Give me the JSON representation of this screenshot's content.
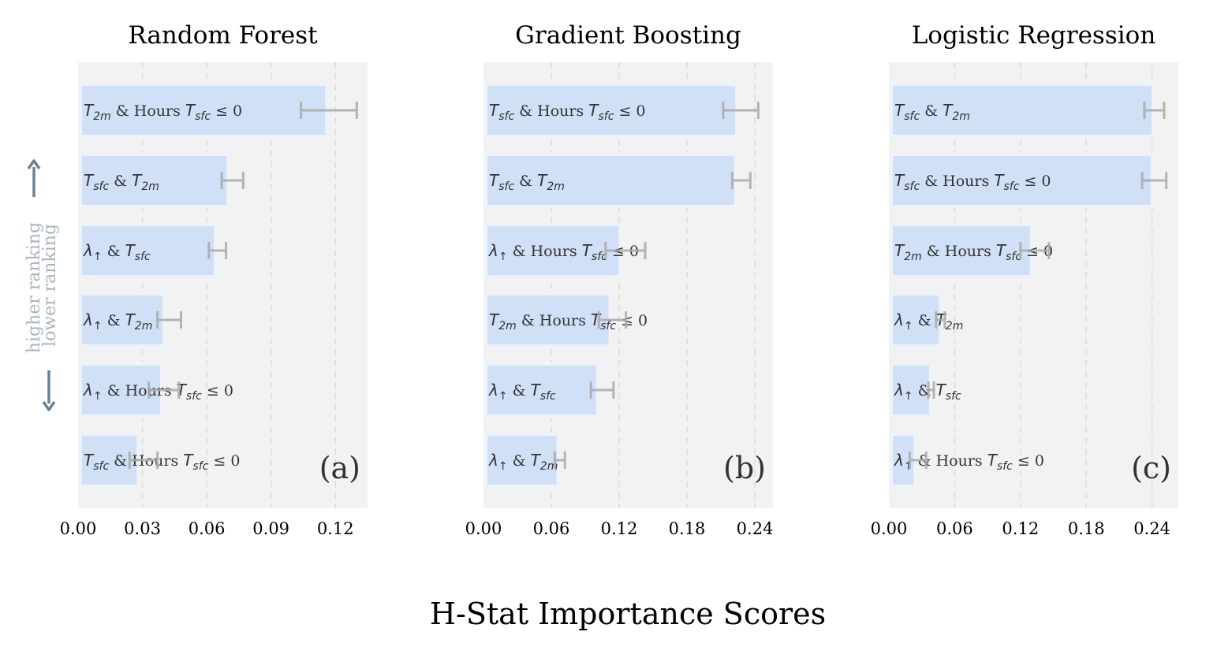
{
  "figure": {
    "xlabel": "H-Stat Importance Scores",
    "ranking_up": "higher ranking",
    "ranking_down": "lower ranking",
    "colors": {
      "bar": "#d0e0f7",
      "bar_edge": "#eef3fb",
      "background": "#f2f2f2",
      "error": "#aaaaaa",
      "arrow": "#6b8194"
    }
  },
  "chart_data": [
    {
      "type": "bar",
      "orientation": "horizontal",
      "title": "Random Forest",
      "panel_tag": "(a)",
      "xlim": [
        0,
        0.135
      ],
      "xticks": [
        "0.00",
        "0.03",
        "0.06",
        "0.09",
        "0.12"
      ],
      "grid": "vertical dashed",
      "bars": [
        {
          "label": [
            "T",
            "2m",
            " & Hours ",
            "T",
            "sfc",
            " ≤ 0"
          ],
          "value": 0.116,
          "err_low": 0.104,
          "err_high": 0.13
        },
        {
          "label": [
            "T",
            "sfc",
            " & ",
            "T",
            "2m"
          ],
          "value": 0.07,
          "err_low": 0.067,
          "err_high": 0.077
        },
        {
          "label": [
            "λ",
            "↑",
            "  & ",
            "T",
            "sfc"
          ],
          "value": 0.064,
          "err_low": 0.061,
          "err_high": 0.069
        },
        {
          "label": [
            "λ",
            "↑",
            "  & ",
            "T",
            "2m"
          ],
          "value": 0.04,
          "err_low": 0.037,
          "err_high": 0.048
        },
        {
          "label": [
            "λ",
            "↑",
            "  & Hours ",
            "T",
            "sfc",
            " ≤ 0"
          ],
          "value": 0.039,
          "err_low": 0.033,
          "err_high": 0.047
        },
        {
          "label": [
            "T",
            "sfc",
            " & Hours ",
            "T",
            "sfc",
            " ≤ 0"
          ],
          "value": 0.028,
          "err_low": 0.024,
          "err_high": 0.037
        }
      ]
    },
    {
      "type": "bar",
      "orientation": "horizontal",
      "title": "Gradient Boosting",
      "panel_tag": "(b)",
      "xlim": [
        0,
        0.256
      ],
      "xticks": [
        "0.00",
        "0.06",
        "0.12",
        "0.18",
        "0.24"
      ],
      "grid": "vertical dashed",
      "bars": [
        {
          "label": [
            "T",
            "sfc",
            " & Hours ",
            "T",
            "sfc",
            " ≤ 0"
          ],
          "value": 0.224,
          "err_low": 0.212,
          "err_high": 0.243
        },
        {
          "label": [
            "T",
            "sfc",
            " & ",
            "T",
            "2m"
          ],
          "value": 0.223,
          "err_low": 0.22,
          "err_high": 0.236
        },
        {
          "label": [
            "λ",
            "↑",
            "  & Hours ",
            "T",
            "sfc",
            " ≤ 0"
          ],
          "value": 0.121,
          "err_low": 0.108,
          "err_high": 0.143
        },
        {
          "label": [
            "T",
            "2m",
            " & Hours ",
            "T",
            "sfc",
            " ≤ 0"
          ],
          "value": 0.112,
          "err_low": 0.102,
          "err_high": 0.126
        },
        {
          "label": [
            "λ",
            "↑",
            "  & ",
            "T",
            "sfc"
          ],
          "value": 0.101,
          "err_low": 0.095,
          "err_high": 0.115
        },
        {
          "label": [
            "λ",
            "↑",
            "  & ",
            "T",
            "2m"
          ],
          "value": 0.066,
          "err_low": 0.063,
          "err_high": 0.072
        }
      ]
    },
    {
      "type": "bar",
      "orientation": "horizontal",
      "title": "Logistic Regression",
      "panel_tag": "(c)",
      "xlim": [
        0,
        0.264
      ],
      "xticks": [
        "0.00",
        "0.06",
        "0.12",
        "0.18",
        "0.24"
      ],
      "grid": "vertical dashed",
      "bars": [
        {
          "label": [
            "T",
            "sfc",
            " & ",
            "T",
            "2m"
          ],
          "value": 0.241,
          "err_low": 0.233,
          "err_high": 0.251
        },
        {
          "label": [
            "T",
            "sfc",
            " & Hours ",
            "T",
            "sfc",
            " ≤ 0"
          ],
          "value": 0.24,
          "err_low": 0.231,
          "err_high": 0.253
        },
        {
          "label": [
            "T",
            "2m",
            " & Hours ",
            "T",
            "sfc",
            " ≤ 0"
          ],
          "value": 0.13,
          "err_low": 0.12,
          "err_high": 0.146
        },
        {
          "label": [
            "λ",
            "↑",
            "  & ",
            "T",
            "2m"
          ],
          "value": 0.047,
          "err_low": 0.043,
          "err_high": 0.051
        },
        {
          "label": [
            "λ",
            "↑",
            "  & ",
            "T",
            "sfc"
          ],
          "value": 0.038,
          "err_low": 0.036,
          "err_high": 0.041
        },
        {
          "label": [
            "λ",
            "↑",
            "  & Hours ",
            "T",
            "sfc",
            " ≤ 0"
          ],
          "value": 0.024,
          "err_low": 0.019,
          "err_high": 0.034
        }
      ]
    }
  ]
}
